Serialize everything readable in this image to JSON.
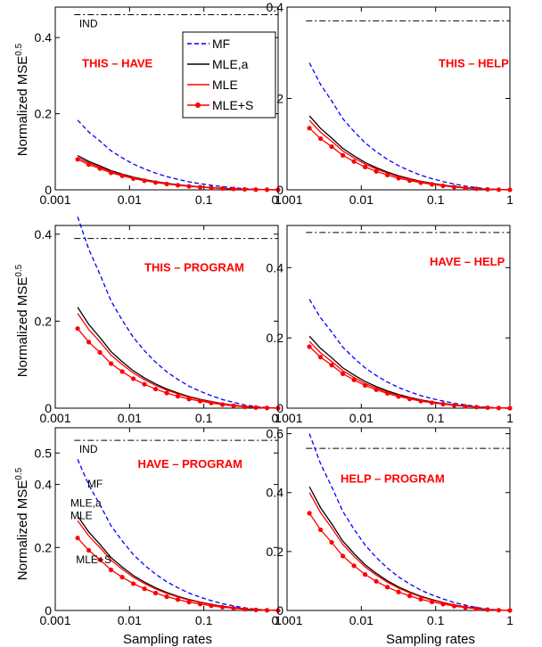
{
  "ylabel_main": "Normalized MSE",
  "ylabel_sup": "0.5",
  "xlabel": "Sampling rates",
  "x_tick_labels": [
    "0.001",
    "0.01",
    "0.1",
    "1"
  ],
  "legend": {
    "entries": [
      {
        "name": "MF",
        "color": "#0000ff",
        "style": "dashed"
      },
      {
        "name": "MLE,a",
        "color": "#000000",
        "style": "solid"
      },
      {
        "name": "MLE",
        "color": "#ff0000",
        "style": "solid"
      },
      {
        "name": "MLE+S",
        "color": "#ff0000",
        "style": "solid-dots"
      }
    ]
  },
  "chart_data": [
    {
      "type": "line",
      "title": "THIS – HAVE",
      "xscale": "log",
      "xlim": [
        0.001,
        1
      ],
      "ylim": [
        0,
        0.48
      ],
      "yticks": [
        0,
        0.2,
        0.4
      ],
      "ytick_labels": [
        "0",
        "0.2",
        "0.4"
      ],
      "ind": 0.46,
      "ind_label": "IND",
      "series": [
        {
          "name": "MF",
          "start": 0.183
        },
        {
          "name": "MLE,a",
          "start": 0.09
        },
        {
          "name": "MLE",
          "start": 0.085
        },
        {
          "name": "MLE+S",
          "start": 0.08
        }
      ]
    },
    {
      "type": "line",
      "title": "THIS – HELP",
      "xscale": "log",
      "xlim": [
        0.001,
        1
      ],
      "ylim": [
        0,
        0.4
      ],
      "yticks": [
        0,
        0.2,
        0.4
      ],
      "ytick_labels": [
        "0",
        "0.2",
        "0.4"
      ],
      "ind": 0.37,
      "series": [
        {
          "name": "MF",
          "start": 0.278
        },
        {
          "name": "MLE,a",
          "start": 0.162
        },
        {
          "name": "MLE",
          "start": 0.152
        },
        {
          "name": "MLE+S",
          "start": 0.135
        }
      ]
    },
    {
      "type": "line",
      "title": "THIS – PROGRAM",
      "xscale": "log",
      "xlim": [
        0.001,
        1
      ],
      "ylim": [
        0,
        0.42
      ],
      "yticks": [
        0,
        0.2,
        0.4
      ],
      "ytick_labels": [
        "0",
        "0.2",
        "0.4"
      ],
      "ind": 0.39,
      "series": [
        {
          "name": "MF",
          "start": 0.44
        },
        {
          "name": "MLE,a",
          "start": 0.232
        },
        {
          "name": "MLE",
          "start": 0.218
        },
        {
          "name": "MLE+S",
          "start": 0.183
        }
      ]
    },
    {
      "type": "line",
      "title": "HAVE – HELP",
      "xscale": "log",
      "xlim": [
        0.001,
        1
      ],
      "ylim": [
        0,
        0.52
      ],
      "yticks": [
        0,
        0.2,
        0.4
      ],
      "ytick_labels": [
        "0",
        "0.2",
        "0.4"
      ],
      "ind": 0.5,
      "series": [
        {
          "name": "MF",
          "start": 0.31
        },
        {
          "name": "MLE,a",
          "start": 0.205
        },
        {
          "name": "MLE",
          "start": 0.19
        },
        {
          "name": "MLE+S",
          "start": 0.175
        }
      ]
    },
    {
      "type": "line",
      "title": "HAVE – PROGRAM",
      "xscale": "log",
      "xlim": [
        0.001,
        1
      ],
      "ylim": [
        0,
        0.58
      ],
      "yticks": [
        0,
        0.2,
        0.4,
        0.5
      ],
      "ytick_labels": [
        "0",
        "0.2",
        "0.4",
        "0.5"
      ],
      "ind": 0.54,
      "ind_label": "IND",
      "annotations": [
        "MF",
        "MLE,a",
        "MLE",
        "MLE+S"
      ],
      "series": [
        {
          "name": "MF",
          "start": 0.48
        },
        {
          "name": "MLE,a",
          "start": 0.3
        },
        {
          "name": "MLE",
          "start": 0.285
        },
        {
          "name": "MLE+S",
          "start": 0.23
        }
      ]
    },
    {
      "type": "line",
      "title": "HELP – PROGRAM",
      "xscale": "log",
      "xlim": [
        0.001,
        1
      ],
      "ylim": [
        0,
        0.62
      ],
      "yticks": [
        0,
        0.2,
        0.4,
        0.6
      ],
      "ytick_labels": [
        "0",
        "0.2",
        "0.4",
        "0.6"
      ],
      "ind": 0.55,
      "series": [
        {
          "name": "MF",
          "start": 0.6
        },
        {
          "name": "MLE,a",
          "start": 0.42
        },
        {
          "name": "MLE",
          "start": 0.4
        },
        {
          "name": "MLE+S",
          "start": 0.33
        }
      ]
    }
  ]
}
